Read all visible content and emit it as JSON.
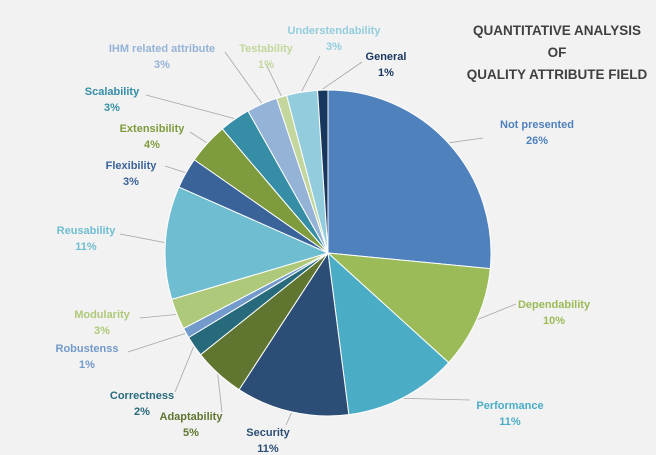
{
  "chart_data": {
    "type": "pie",
    "title_lines": [
      "QUANTITATIVE ANALYSIS OF",
      "QUALITY ATTRIBUTE FIELD"
    ],
    "slices": [
      {
        "label": "Not presented",
        "value": 26,
        "pct_label": "26%",
        "color": "#4f81bd",
        "label_color": "#4f81bd"
      },
      {
        "label": "Dependability",
        "value": 10,
        "pct_label": "10%",
        "color": "#9bbb59",
        "label_color": "#9bbb59"
      },
      {
        "label": "Performance",
        "value": 11,
        "pct_label": "11%",
        "color": "#4bacc6",
        "label_color": "#4bacc6"
      },
      {
        "label": "Security",
        "value": 11,
        "pct_label": "11%",
        "color": "#2c4d75",
        "label_color": "#2c4d75"
      },
      {
        "label": "Adaptability",
        "value": 5,
        "pct_label": "5%",
        "color": "#5f7530",
        "label_color": "#5f7530"
      },
      {
        "label": "Correctness",
        "value": 2,
        "pct_label": "2%",
        "color": "#276a7c",
        "label_color": "#276a7c"
      },
      {
        "label": "Robustenss",
        "value": 1,
        "pct_label": "1%",
        "color": "#729aca",
        "label_color": "#729aca"
      },
      {
        "label": "Modularity",
        "value": 3,
        "pct_label": "3%",
        "color": "#afc97a",
        "label_color": "#afc97a"
      },
      {
        "label": "Reusability",
        "value": 11,
        "pct_label": "11%",
        "color": "#6fbdd1",
        "label_color": "#6fbdd1"
      },
      {
        "label": "Flexibility",
        "value": 3,
        "pct_label": "3%",
        "color": "#3a6399",
        "label_color": "#3a6399"
      },
      {
        "label": "Extensibility",
        "value": 4,
        "pct_label": "4%",
        "color": "#7e9c3e",
        "label_color": "#7e9c3e"
      },
      {
        "label": "Scalability",
        "value": 3,
        "pct_label": "3%",
        "color": "#358ea6",
        "label_color": "#358ea6"
      },
      {
        "label": "IHM  related attribute",
        "value": 3,
        "pct_label": "3%",
        "color": "#95b3d7",
        "label_color": "#95b3d7"
      },
      {
        "label": "Testability",
        "value": 1,
        "pct_label": "1%",
        "color": "#c3d69b",
        "label_color": "#c3d69b"
      },
      {
        "label": "Understendability",
        "value": 3,
        "pct_label": "3%",
        "color": "#93cddd",
        "label_color": "#93cddd"
      },
      {
        "label": "General",
        "value": 1,
        "pct_label": "1%",
        "color": "#17375e",
        "label_color": "#17375e"
      }
    ],
    "legend": "none"
  }
}
